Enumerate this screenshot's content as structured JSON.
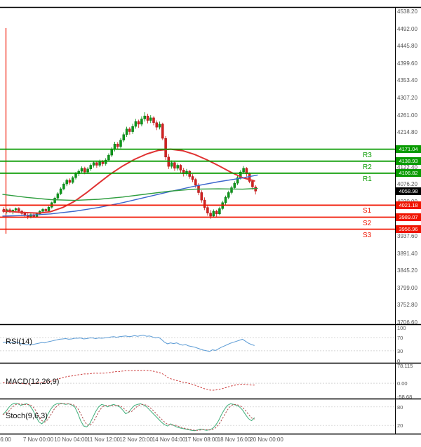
{
  "chart_data": {
    "type": "candlestick",
    "title": "",
    "ylim": [
      3706.6,
      4538.2
    ],
    "price_axis_ticks": [
      4538.2,
      4492.0,
      4445.8,
      4399.6,
      4353.4,
      4307.2,
      4261.0,
      4214.8,
      4122.4,
      4076.2,
      4030.0,
      3937.6,
      3891.4,
      3845.2,
      3799.0,
      3752.8,
      3706.6
    ],
    "x_axis_labels": [
      "6:00",
      "7 Nov 00:00",
      "10 Nov 04:00",
      "11 Nov 12:00",
      "12 Nov 20:00",
      "14 Nov 04:00",
      "17 Nov 08:00",
      "18 Nov 16:00",
      "20 Nov 00:00"
    ],
    "current_price": 4058.98,
    "levels": [
      {
        "label": "R3",
        "kind": "resistance",
        "price": 4171.04,
        "line": true
      },
      {
        "label": "R2",
        "kind": "resistance",
        "price": 4138.93,
        "line": true
      },
      {
        "label": "R1",
        "kind": "resistance",
        "price": 4106.82,
        "line": true
      },
      {
        "label": "",
        "kind": "current",
        "price": 4058.98,
        "line": false
      },
      {
        "label": "S1",
        "kind": "support",
        "price": 4021.18,
        "line": true
      },
      {
        "label": "S2",
        "kind": "support",
        "price": 3989.07,
        "line": true
      },
      {
        "label": "S3",
        "kind": "support",
        "price": 3956.96,
        "line": true
      }
    ],
    "candles": [
      [
        4010,
        4016,
        4000,
        4004
      ],
      [
        4004,
        4012,
        3999,
        4009
      ],
      [
        4009,
        4014,
        4001,
        4003
      ],
      [
        4003,
        4010,
        3997,
        4008
      ],
      [
        4008,
        4015,
        4003,
        4012
      ],
      [
        4012,
        4016,
        4000,
        4005
      ],
      [
        4005,
        4009,
        3994,
        3999
      ],
      [
        3999,
        4004,
        3989,
        3994
      ],
      [
        3994,
        3999,
        3984,
        3990
      ],
      [
        3990,
        4000,
        3986,
        3996
      ],
      [
        3996,
        4001,
        3987,
        3991
      ],
      [
        3991,
        4002,
        3988,
        3998
      ],
      [
        3998,
        4008,
        3994,
        4005
      ],
      [
        4005,
        4014,
        4000,
        4010
      ],
      [
        4010,
        4013,
        4001,
        4006
      ],
      [
        4006,
        4019,
        4003,
        4016
      ],
      [
        4016,
        4031,
        4012,
        4028
      ],
      [
        4028,
        4044,
        4024,
        4040
      ],
      [
        4040,
        4056,
        4036,
        4052
      ],
      [
        4052,
        4069,
        4048,
        4065
      ],
      [
        4065,
        4082,
        4061,
        4078
      ],
      [
        4078,
        4092,
        4072,
        4088
      ],
      [
        4088,
        4093,
        4076,
        4082
      ],
      [
        4082,
        4099,
        4078,
        4095
      ],
      [
        4095,
        4110,
        4090,
        4105
      ],
      [
        4105,
        4117,
        4099,
        4112
      ],
      [
        4112,
        4125,
        4107,
        4120
      ],
      [
        4120,
        4124,
        4104,
        4110
      ],
      [
        4110,
        4123,
        4105,
        4118
      ],
      [
        4118,
        4133,
        4113,
        4128
      ],
      [
        4128,
        4140,
        4122,
        4135
      ],
      [
        4135,
        4139,
        4121,
        4128
      ],
      [
        4128,
        4143,
        4123,
        4138
      ],
      [
        4138,
        4142,
        4125,
        4132
      ],
      [
        4132,
        4147,
        4127,
        4142
      ],
      [
        4142,
        4160,
        4138,
        4155
      ],
      [
        4155,
        4176,
        4150,
        4170
      ],
      [
        4170,
        4191,
        4165,
        4185
      ],
      [
        4185,
        4190,
        4170,
        4178
      ],
      [
        4178,
        4201,
        4173,
        4195
      ],
      [
        4195,
        4216,
        4190,
        4210
      ],
      [
        4210,
        4231,
        4204,
        4225
      ],
      [
        4225,
        4230,
        4210,
        4218
      ],
      [
        4218,
        4239,
        4212,
        4232
      ],
      [
        4232,
        4252,
        4226,
        4245
      ],
      [
        4245,
        4250,
        4228,
        4238
      ],
      [
        4238,
        4259,
        4232,
        4252
      ],
      [
        4252,
        4270,
        4245,
        4260
      ],
      [
        4260,
        4266,
        4240,
        4248
      ],
      [
        4248,
        4262,
        4241,
        4255
      ],
      [
        4255,
        4259,
        4235,
        4242
      ],
      [
        4242,
        4248,
        4222,
        4230
      ],
      [
        4230,
        4245,
        4224,
        4238
      ],
      [
        4238,
        4242,
        4195,
        4200
      ],
      [
        4200,
        4206,
        4142,
        4150
      ],
      [
        4150,
        4158,
        4118,
        4125
      ],
      [
        4125,
        4141,
        4119,
        4135
      ],
      [
        4135,
        4139,
        4113,
        4120
      ],
      [
        4120,
        4133,
        4114,
        4128
      ],
      [
        4128,
        4131,
        4108,
        4115
      ],
      [
        4115,
        4121,
        4098,
        4105
      ],
      [
        4105,
        4118,
        4100,
        4112
      ],
      [
        4112,
        4115,
        4092,
        4098
      ],
      [
        4098,
        4104,
        4083,
        4090
      ],
      [
        4090,
        4094,
        4068,
        4075
      ],
      [
        4075,
        4080,
        4048,
        4055
      ],
      [
        4055,
        4061,
        4028,
        4035
      ],
      [
        4035,
        4042,
        4008,
        4015
      ],
      [
        4015,
        4021,
        3993,
        4000
      ],
      [
        4000,
        4008,
        3985,
        3992
      ],
      [
        3992,
        4010,
        3988,
        4005
      ],
      [
        4005,
        4009,
        3990,
        3998
      ],
      [
        3998,
        4017,
        3994,
        4012
      ],
      [
        4012,
        4033,
        4008,
        4028
      ],
      [
        4028,
        4047,
        4023,
        4042
      ],
      [
        4042,
        4060,
        4037,
        4055
      ],
      [
        4055,
        4073,
        4050,
        4068
      ],
      [
        4068,
        4085,
        4063,
        4080
      ],
      [
        4080,
        4100,
        4075,
        4095
      ],
      [
        4095,
        4115,
        4090,
        4110
      ],
      [
        4110,
        4126,
        4105,
        4120
      ],
      [
        4120,
        4123,
        4098,
        4105
      ],
      [
        4105,
        4109,
        4080,
        4085
      ],
      [
        4085,
        4090,
        4063,
        4070
      ],
      [
        4070,
        4075,
        4050,
        4059
      ]
    ],
    "moving_averages": [
      {
        "name": "ma-red",
        "color": "#e03232",
        "width": 2,
        "points": [
          [
            0,
            4006
          ],
          [
            6,
            4002
          ],
          [
            12,
            4000
          ],
          [
            16,
            4004
          ],
          [
            20,
            4015
          ],
          [
            24,
            4032
          ],
          [
            28,
            4055
          ],
          [
            32,
            4080
          ],
          [
            36,
            4105
          ],
          [
            40,
            4126
          ],
          [
            44,
            4144
          ],
          [
            48,
            4158
          ],
          [
            52,
            4168
          ],
          [
            56,
            4171
          ],
          [
            60,
            4167
          ],
          [
            64,
            4157
          ],
          [
            68,
            4143
          ],
          [
            72,
            4127
          ],
          [
            76,
            4110
          ],
          [
            80,
            4095
          ],
          [
            84,
            4086
          ]
        ]
      },
      {
        "name": "ma-blue",
        "color": "#3b66cc",
        "width": 1.4,
        "points": [
          [
            0,
            3992
          ],
          [
            8,
            3994
          ],
          [
            16,
            3998
          ],
          [
            24,
            4005
          ],
          [
            32,
            4015
          ],
          [
            40,
            4028
          ],
          [
            48,
            4043
          ],
          [
            56,
            4058
          ],
          [
            64,
            4072
          ],
          [
            72,
            4084
          ],
          [
            80,
            4094
          ],
          [
            85,
            4102
          ]
        ]
      },
      {
        "name": "ma-green",
        "color": "#2f9e3f",
        "width": 1.4,
        "points": [
          [
            0,
            4050
          ],
          [
            8,
            4042
          ],
          [
            16,
            4036
          ],
          [
            24,
            4034
          ],
          [
            32,
            4037
          ],
          [
            40,
            4043
          ],
          [
            48,
            4051
          ],
          [
            56,
            4059
          ],
          [
            64,
            4064
          ],
          [
            72,
            4065
          ],
          [
            80,
            4064
          ],
          [
            85,
            4066
          ]
        ]
      }
    ],
    "indicators": [
      {
        "key": "rsi",
        "name": "RSI(14)",
        "range": [
          0,
          100
        ],
        "guide_levels": [
          70,
          30
        ],
        "ticks": [
          {
            "v": 100,
            "label": "100"
          },
          {
            "v": 70,
            "label": "70"
          },
          {
            "v": 30,
            "label": "30"
          },
          {
            "v": 0,
            "label": "0"
          }
        ],
        "series": [
          {
            "name": "rsi-line",
            "color": "#5b9bd5",
            "dash": false,
            "values": [
              55,
              56,
              54,
              55,
              57,
              55,
              52,
              50,
              48,
              50,
              49,
              51,
              53,
              55,
              54,
              57,
              59,
              61,
              63,
              65,
              66,
              67,
              65,
              66,
              68,
              68,
              69,
              66,
              67,
              69,
              69,
              67,
              69,
              68,
              69,
              70,
              72,
              73,
              71,
              73,
              74,
              75,
              73,
              74,
              76,
              74,
              76,
              77,
              74,
              75,
              72,
              69,
              71,
              64,
              56,
              51,
              54,
              52,
              54,
              50,
              47,
              49,
              45,
              43,
              41,
              38,
              35,
              32,
              30,
              28,
              33,
              31,
              36,
              41,
              45,
              49,
              53,
              56,
              59,
              62,
              65,
              59,
              53,
              49,
              46
            ]
          }
        ]
      },
      {
        "key": "macd",
        "name": "MACD(12,26,9)",
        "range": [
          -58.68,
          78.115
        ],
        "guide_levels": [
          0
        ],
        "ticks": [
          {
            "v": 78.115,
            "label": "78.115"
          },
          {
            "v": 0,
            "label": "0.00"
          },
          {
            "v": -58.68,
            "label": "-58.68"
          }
        ],
        "series": [
          {
            "name": "macd-line",
            "color": "#cc3b3b",
            "dash": true,
            "values": [
              2,
              1,
              0,
              -1,
              0,
              1,
              0,
              -2,
              -3,
              -2,
              -1,
              0,
              2,
              3,
              4,
              6,
              9,
              13,
              17,
              21,
              25,
              28,
              31,
              32,
              34,
              37,
              39,
              41,
              41,
              42,
              44,
              45,
              44,
              45,
              45,
              46,
              48,
              50,
              52,
              52,
              54,
              55,
              56,
              55,
              56,
              57,
              56,
              57,
              57,
              55,
              54,
              51,
              48,
              44,
              36,
              26,
              20,
              16,
              12,
              9,
              5,
              3,
              0,
              -4,
              -8,
              -13,
              -18,
              -23,
              -27,
              -30,
              -31,
              -30,
              -28,
              -25,
              -21,
              -17,
              -13,
              -10,
              -7,
              -5,
              -4,
              -5,
              -7,
              -8,
              -8
            ]
          }
        ]
      },
      {
        "key": "stoch",
        "name": "Stoch(9,6,3)",
        "range": [
          0,
          100
        ],
        "guide_levels": [
          80,
          20
        ],
        "ticks": [
          {
            "v": 80,
            "label": "80"
          },
          {
            "v": 20,
            "label": "20"
          }
        ],
        "series": [
          {
            "name": "stoch-k",
            "color": "#3fae7a",
            "dash": false,
            "values": [
              55,
              65,
              78,
              88,
              92,
              90,
              85,
              88,
              90,
              84,
              70,
              50,
              32,
              25,
              35,
              55,
              72,
              85,
              90,
              92,
              90,
              88,
              90,
              86,
              80,
              60,
              35,
              18,
              15,
              25,
              45,
              65,
              80,
              88,
              85,
              80,
              85,
              88,
              84,
              80,
              70,
              58,
              62,
              75,
              85,
              88,
              90,
              86,
              80,
              70,
              60,
              50,
              40,
              30,
              22,
              18,
              25,
              20,
              15,
              12,
              10,
              8,
              6,
              4,
              3,
              5,
              8,
              6,
              4,
              6,
              10,
              20,
              35,
              55,
              72,
              85,
              90,
              88,
              85,
              80,
              70,
              55,
              42,
              35,
              45
            ]
          },
          {
            "name": "stoch-d",
            "color": "#b05050",
            "dash": true,
            "derive": "sma3"
          }
        ]
      }
    ],
    "colors": {
      "candle_up": "#0c9a1a",
      "candle_down": "#d62020",
      "candle_up_border": "#0a6e14",
      "candle_down_border": "#9e1414",
      "resistance": "#089b00",
      "support": "#f01400",
      "current": "#000000",
      "axis_text": "#555555",
      "frame": "#000000",
      "guide": "#c8c8c8"
    }
  }
}
